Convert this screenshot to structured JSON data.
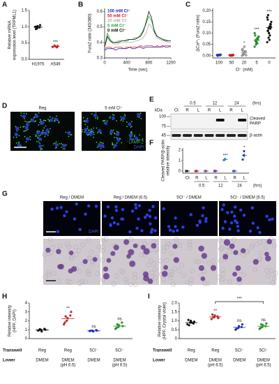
{
  "panel_labels": [
    "A",
    "B",
    "C",
    "D",
    "E",
    "F",
    "G",
    "H",
    "I"
  ],
  "chart_data": [
    {
      "type": "dot",
      "ylabel": [
        "Relative mRNA",
        "expression level (TRPML1)"
      ],
      "categories": [
        "H1975",
        "A549"
      ],
      "colors": [
        "#111111",
        "#e02020"
      ],
      "points": [
        [
          1.0,
          0.95,
          1.02,
          0.98,
          1.05,
          0.93,
          1.0
        ],
        [
          0.38,
          0.42,
          0.4,
          0.37,
          0.41
        ]
      ],
      "means": [
        0.99,
        0.4
      ],
      "errors": [
        0.02,
        0.01
      ],
      "significance": [
        null,
        "***"
      ],
      "ylim": [
        0,
        1.5
      ],
      "yticks": [
        {
          "value": 0,
          "label": "0.0"
        },
        0.5,
        {
          "value": 1,
          "label": "1.0"
        },
        1.5
      ]
    },
    {
      "type": "line",
      "ylabel": [
        "Fura2 ratio (340/380)"
      ],
      "xlabel": "Time (sec)",
      "x": [
        0,
        50,
        100,
        150,
        200,
        250,
        300,
        350,
        400,
        450,
        500,
        550,
        600,
        650,
        700,
        750,
        800,
        850,
        900,
        950,
        1000,
        1050,
        1100,
        1150,
        1200
      ],
      "series": [
        {
          "name": "100 mM Cl⁻",
          "color": "#2222cc",
          "values": [
            0.35,
            0.36,
            0.36,
            0.36,
            0.35,
            0.36,
            0.36,
            0.36,
            0.36,
            0.37,
            0.36,
            0.36,
            0.37,
            0.37,
            0.36,
            0.37,
            0.37,
            0.37,
            0.37,
            0.37,
            0.37,
            0.38,
            0.37,
            0.37,
            0.38
          ]
        },
        {
          "name": "50 mM Cl⁻",
          "color": "#dd2222",
          "values": [
            0.36,
            0.37,
            0.37,
            0.36,
            0.37,
            0.37,
            0.37,
            0.36,
            0.37,
            0.37,
            0.37,
            0.37,
            0.37,
            0.38,
            0.37,
            0.38,
            0.38,
            0.38,
            0.37,
            0.38,
            0.37,
            0.37,
            0.38,
            0.38,
            0.37
          ]
        },
        {
          "name": "20 mM Cl⁻",
          "color": "#b0b0b0",
          "values": [
            0.37,
            0.43,
            0.41,
            0.39,
            0.39,
            0.39,
            0.4,
            0.4,
            0.4,
            0.4,
            0.4,
            0.41,
            0.41,
            0.42,
            0.43,
            0.46,
            0.52,
            0.5,
            0.46,
            0.43,
            0.42,
            0.41,
            0.41,
            0.4,
            0.4
          ]
        },
        {
          "name": "5 mM Cl⁻",
          "color": "#22aa33",
          "values": [
            0.37,
            0.46,
            0.42,
            0.4,
            0.4,
            0.41,
            0.41,
            0.41,
            0.42,
            0.42,
            0.42,
            0.43,
            0.43,
            0.45,
            0.48,
            0.52,
            0.57,
            0.54,
            0.48,
            0.44,
            0.43,
            0.42,
            0.42,
            0.41,
            0.41
          ]
        },
        {
          "name": "0 mM Cl⁻",
          "color": "#111111",
          "values": [
            0.37,
            0.44,
            0.41,
            0.4,
            0.4,
            0.4,
            0.41,
            0.41,
            0.41,
            0.42,
            0.42,
            0.42,
            0.43,
            0.44,
            0.47,
            0.53,
            0.6,
            0.56,
            0.47,
            0.44,
            0.43,
            0.42,
            0.41,
            0.41,
            0.41
          ]
        }
      ],
      "xlim": [
        0,
        1200
      ],
      "xticks": [
        0,
        400,
        800,
        1200
      ],
      "ylim": [
        0.3,
        0.62
      ],
      "yticks": [
        0.3,
        0.4,
        0.5,
        0.6
      ]
    },
    {
      "type": "dot",
      "ylabel": [
        "ΔCa²⁺ᵢ (Fura2 ratio)"
      ],
      "xlabel": "Cl⁻ (mM)",
      "categories": [
        "100",
        "50",
        "20",
        "5",
        "0"
      ],
      "colors": [
        "#2244cc",
        "#dd2222",
        "#aaaaaa",
        "#22aa33",
        "#111111"
      ],
      "points": [
        [
          0.003,
          0.001,
          0.004,
          0.002,
          0.005,
          0.0,
          0.003
        ],
        [
          0.002,
          0.0,
          0.003,
          0.001,
          0.004,
          0.002
        ],
        [
          0.0,
          0.005,
          0.01,
          0.02,
          0.015,
          0.03,
          0.008,
          0.04,
          0.012,
          0.002,
          0.025,
          0.018
        ],
        [
          0.04,
          0.05,
          0.06,
          0.07,
          0.08,
          0.09,
          0.065,
          0.075,
          0.055,
          0.085,
          0.1,
          0.07,
          0.06,
          0.08
        ],
        [
          0.06,
          0.08,
          0.1,
          0.12,
          0.14,
          0.16,
          0.11,
          0.13,
          0.09,
          0.15,
          0.17,
          0.12,
          0.1,
          0.14,
          0.13,
          0.11,
          0.18,
          0.07
        ]
      ],
      "means": [
        0.003,
        0.002,
        0.014,
        0.07,
        0.125
      ],
      "errors": [
        0.001,
        0.001,
        0.004,
        0.004,
        0.008
      ],
      "significance": [
        null,
        null,
        "*",
        "***",
        "***"
      ],
      "ylim": [
        -0.01,
        0.21
      ],
      "yticks": [
        {
          "value": 0,
          "label": "0.00"
        },
        0.05,
        {
          "value": 0.1,
          "label": "0.10"
        },
        0.15,
        {
          "value": 0.2,
          "label": "0.20"
        }
      ]
    },
    {
      "type": "dot",
      "ylabel": [
        "Cleaved PARP/β-actin",
        "relative intensity"
      ],
      "categories": [
        "Ct",
        "R",
        "L",
        "R",
        "L",
        "R",
        "L"
      ],
      "time_labels": [
        "0.5",
        "12",
        "24"
      ],
      "time_unit": "(hrs)",
      "colors": [
        "#333333",
        "#e0206e",
        "#9b59b6",
        "#8a2be2",
        "#1fa0c8",
        "#3c6fd6",
        "#2040c0"
      ],
      "points": [
        [
          0,
          0,
          0
        ],
        [
          0,
          0,
          0
        ],
        [
          0,
          0,
          0
        ],
        [
          0,
          0,
          0
        ],
        [
          1.05,
          1.12,
          1.15
        ],
        [
          0,
          0,
          0
        ],
        [
          1.1,
          1.5,
          1.9
        ]
      ],
      "means": [
        0,
        0,
        0,
        0,
        1.1,
        0,
        1.5
      ],
      "errors": [
        0,
        0,
        0,
        0,
        0.03,
        0,
        0.23
      ],
      "significance": [
        null,
        null,
        null,
        null,
        "***",
        null,
        "*"
      ],
      "ylim": [
        -0.2,
        2.2
      ],
      "yticks": [
        0,
        1,
        2
      ]
    },
    {
      "type": "dot",
      "ylabel": [
        "Relative intensity",
        "(HPF, DAPI)"
      ],
      "row_titles": [
        "Transwell",
        "Lower"
      ],
      "categories": [
        "Reg",
        "Reg",
        "5Cl⁻",
        "5Cl⁻"
      ],
      "lower_line1": [
        "DMEM",
        "DMEM",
        "DMEM",
        "DMEM"
      ],
      "lower_line2": [
        null,
        "(pH 6.5)",
        null,
        "(pH 6.5)"
      ],
      "colors": [
        "#111111",
        "#d62728",
        "#2233cc",
        "#22aa22"
      ],
      "points": [
        [
          0.9,
          1.0,
          0.8,
          1.1,
          1.0,
          0.95,
          1.05
        ],
        [
          1.6,
          2.0,
          2.3,
          2.6,
          3.0,
          1.8,
          2.5
        ],
        [
          0.85,
          0.9,
          0.8,
          0.95,
          0.9,
          0.88
        ],
        [
          1.1,
          1.3,
          1.5,
          1.8,
          1.4,
          1.2,
          1.6
        ]
      ],
      "means": [
        0.97,
        2.25,
        0.88,
        1.41
      ],
      "errors": [
        0.04,
        0.2,
        0.02,
        0.09
      ],
      "significance": [
        null,
        "**",
        "ns",
        "ns"
      ],
      "ylim": [
        0,
        4
      ],
      "yticks": [
        0,
        1,
        2,
        3,
        4
      ]
    },
    {
      "type": "dot",
      "ylabel": [
        "Relative intensity",
        "(HPF, Crystal violet)"
      ],
      "row_titles": [
        "Transwell",
        "Lower"
      ],
      "categories": [
        "Reg",
        "Reg",
        "5Cl⁻",
        "5Cl⁻"
      ],
      "lower_line1": [
        "DMEM",
        "DMEM",
        "DMEM",
        "DMEM"
      ],
      "lower_line2": [
        null,
        "(pH 6.5)",
        null,
        "(pH 6.5)"
      ],
      "colors": [
        "#111111",
        "#d62728",
        "#2233cc",
        "#22aa22"
      ],
      "points": [
        [
          0.8,
          0.9,
          1.0,
          0.85,
          0.95,
          1.05,
          0.75,
          0.9
        ],
        [
          1.1,
          1.2,
          1.3,
          1.25,
          1.15,
          1.35,
          1.2
        ],
        [
          0.5,
          0.6,
          0.7,
          0.65,
          0.8,
          0.55
        ],
        [
          0.55,
          0.65,
          0.75,
          0.7,
          0.85,
          0.6,
          0.8
        ]
      ],
      "means": [
        0.9,
        1.22,
        0.63,
        0.7
      ],
      "errors": [
        0.04,
        0.03,
        0.04,
        0.04
      ],
      "significance": [
        null,
        "**",
        "ns",
        "ns"
      ],
      "bracket_label": "***",
      "ylim": [
        0,
        2
      ],
      "yticks": [
        0,
        0.5,
        {
          "value": 1,
          "label": "1.0"
        },
        1.5,
        {
          "value": 2,
          "label": "2.0"
        }
      ]
    }
  ],
  "micrograph_d": {
    "labels": [
      "Reg",
      "5 mM Cl⁻"
    ],
    "stains": [
      "LAMP-2",
      "DAPI"
    ]
  },
  "blot_e": {
    "kda_title": "kDa",
    "markers": [
      "100",
      "75",
      "45"
    ],
    "times": [
      "0.5",
      "12",
      "24"
    ],
    "time_unit": "(hrs)",
    "lanes": [
      "Ct",
      "R",
      "L",
      "R",
      "L",
      "R",
      "L"
    ],
    "target_lines": [
      "Cleaved",
      "PARP"
    ],
    "control": "β-actin"
  },
  "micrograph_g": {
    "columns": [
      "Reg / DMEM",
      "Reg / DMEM (6.5)",
      "5Cl⁻ / DMEM",
      "5Cl⁻ / DMEM (6.5)"
    ],
    "stain": "DAPI"
  }
}
